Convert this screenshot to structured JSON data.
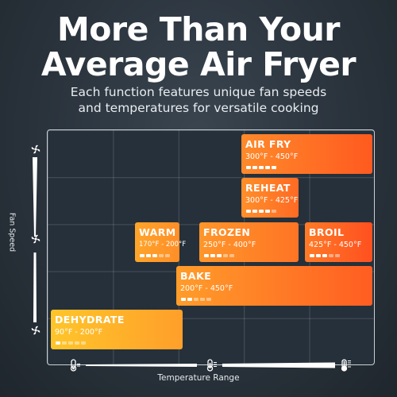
{
  "headline": {
    "line1": "More Than Your",
    "line2": "Average Air Fryer"
  },
  "subheadline": {
    "line1": "Each function features unique fan speeds",
    "line2": "and temperatures for versatile cooking"
  },
  "axes": {
    "y_label": "Fan Speed",
    "x_label": "Temperature Range"
  },
  "functions": [
    {
      "name": "AIR FRY",
      "temp": "300°F - 450°F",
      "fan_level": 5
    },
    {
      "name": "REHEAT",
      "temp": "300°F - 425°F",
      "fan_level": 4
    },
    {
      "name": "WARM",
      "temp": "170°F - 200°F",
      "fan_level": 3
    },
    {
      "name": "FROZEN",
      "temp": "250°F - 400°F",
      "fan_level": 3
    },
    {
      "name": "BROIL",
      "temp": "425°F - 450°F",
      "fan_level": 3
    },
    {
      "name": "BAKE",
      "temp": "200°F - 450°F",
      "fan_level": 2
    },
    {
      "name": "DEHYDRATE",
      "temp": "90°F - 200°F",
      "fan_level": 1
    }
  ],
  "fan_bar_segments": 5,
  "colors": {
    "accent_orange": "#ff6a24",
    "accent_yellow": "#ffc52a",
    "background": "#2a333c"
  },
  "icons": [
    "fan-icon",
    "thermometer-low-icon",
    "thermometer-mid-icon",
    "thermometer-high-icon"
  ]
}
